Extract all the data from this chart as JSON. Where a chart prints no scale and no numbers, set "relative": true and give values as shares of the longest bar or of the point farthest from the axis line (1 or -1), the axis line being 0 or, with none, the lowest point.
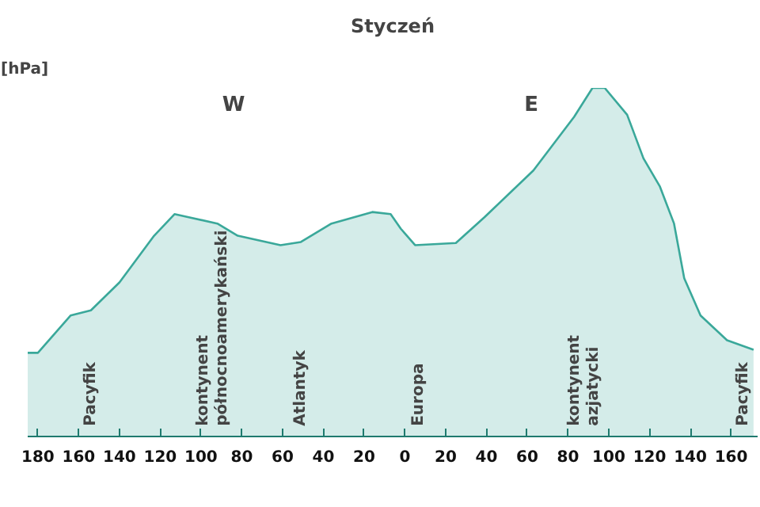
{
  "chart_data": {
    "type": "area",
    "title": "Styczeń",
    "ylabel": "[hPa]",
    "relative": true,
    "x": [
      -185,
      -180,
      -164,
      -154,
      -140,
      -123,
      -113,
      -106,
      -92,
      -82,
      -61,
      -51,
      -36,
      -16,
      -7,
      -2,
      5,
      25,
      39,
      63,
      83,
      92,
      98,
      109,
      117,
      125,
      132,
      137,
      145,
      158,
      171
    ],
    "series": [
      {
        "color": "#3aa89a",
        "values": [
          0.24,
          0.24,
          0.347,
          0.362,
          0.442,
          0.576,
          0.638,
          0.629,
          0.611,
          0.576,
          0.549,
          0.558,
          0.611,
          0.644,
          0.638,
          0.596,
          0.549,
          0.555,
          0.629,
          0.763,
          0.917,
          1,
          1,
          0.923,
          0.798,
          0.718,
          0.611,
          0.454,
          0.347,
          0.276,
          0.249
        ]
      }
    ],
    "xlim": [
      -185,
      173
    ],
    "xticks": [
      {
        "value": -180,
        "label": "180"
      },
      {
        "value": -160,
        "label": "160"
      },
      {
        "value": -140,
        "label": "140"
      },
      {
        "value": -120,
        "label": "120"
      },
      {
        "value": -100,
        "label": "100"
      },
      {
        "value": -80,
        "label": "80"
      },
      {
        "value": -60,
        "label": "60"
      },
      {
        "value": -40,
        "label": "40"
      },
      {
        "value": -20,
        "label": "20"
      },
      0,
      20,
      40,
      60,
      80,
      100,
      120,
      140,
      160
    ],
    "grid": false,
    "annotations": [
      "W",
      "E",
      "Pacyfik",
      "kontynent\npółnocnoamerykański",
      "Atlantyk",
      "Europa",
      "kontynent\nazjatycki",
      "Pacyfik"
    ]
  }
}
